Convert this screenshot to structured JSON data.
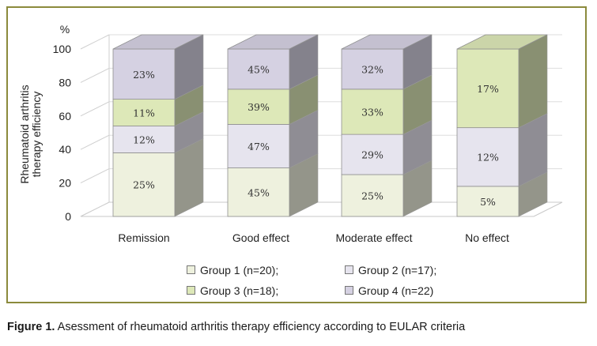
{
  "chart_data": {
    "type": "bar",
    "stacked": true,
    "three_d": true,
    "categories": [
      "Remission",
      "Good effect",
      "Moderate effect",
      "No effect"
    ],
    "series": [
      {
        "name": "Group 1 (n=20);",
        "color": "#eef1de",
        "values": [
          38,
          29,
          25,
          18
        ],
        "labels": [
          "25%",
          "45%",
          "25%",
          "5%"
        ]
      },
      {
        "name": "Group 2 (n=17);",
        "color": "#e6e4ee",
        "values": [
          16,
          26,
          24,
          35
        ],
        "labels": [
          "12%",
          "47%",
          "29%",
          "12%"
        ]
      },
      {
        "name": "Group 3 (n=18);",
        "color": "#dde8b8",
        "values": [
          16,
          21,
          27,
          47
        ],
        "labels": [
          "11%",
          "39%",
          "33%",
          "17%"
        ]
      },
      {
        "name": "Group 4 (n=22)",
        "color": "#d5d1e2",
        "values": [
          30,
          24,
          24,
          0
        ],
        "labels": [
          "23%",
          "45%",
          "32%",
          ""
        ]
      }
    ],
    "ylabel": "Rheumatoid arthritis therapy efficiency",
    "yunit": "%",
    "ylim": [
      0,
      100
    ],
    "yticks": [
      0,
      20,
      40,
      60,
      80,
      100
    ],
    "legend_placement": "bottom"
  },
  "caption": {
    "label": "Figure 1.",
    "text": " Asessment of rheumatoid arthritis therapy efficiency according to EULAR criteria"
  }
}
